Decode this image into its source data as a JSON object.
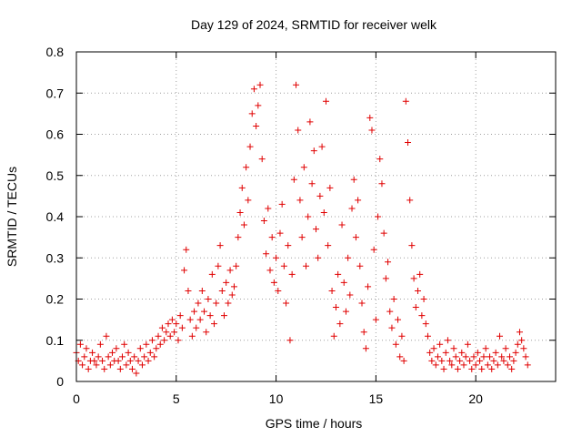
{
  "chart_data": {
    "type": "scatter",
    "title": "Day 129 of 2024, SRMTID for receiver welk",
    "xlabel": "GPS time / hours",
    "ylabel": "SRMTID / TECUs",
    "xlim": [
      0,
      24
    ],
    "ylim": [
      0,
      0.8
    ],
    "xticks": [
      0,
      5,
      10,
      15,
      20
    ],
    "xtick_labels": [
      "0",
      "5",
      "10",
      "15",
      "20"
    ],
    "yticks": [
      0,
      0.1,
      0.2,
      0.3,
      0.4,
      0.5,
      0.6,
      0.7,
      0.8
    ],
    "ytick_labels": [
      "0",
      "0.1",
      "0.2",
      "0.3",
      "0.4",
      "0.5",
      "0.6",
      "0.7",
      "0.8"
    ],
    "grid": true,
    "marker": "plus",
    "color": "#e00000",
    "series": [
      {
        "name": "SRMTID",
        "points": [
          [
            0.0,
            0.07
          ],
          [
            0.1,
            0.05
          ],
          [
            0.2,
            0.09
          ],
          [
            0.3,
            0.04
          ],
          [
            0.4,
            0.06
          ],
          [
            0.5,
            0.08
          ],
          [
            0.6,
            0.03
          ],
          [
            0.7,
            0.05
          ],
          [
            0.8,
            0.07
          ],
          [
            0.9,
            0.05
          ],
          [
            1.0,
            0.04
          ],
          [
            1.1,
            0.06
          ],
          [
            1.2,
            0.09
          ],
          [
            1.3,
            0.05
          ],
          [
            1.4,
            0.03
          ],
          [
            1.5,
            0.11
          ],
          [
            1.6,
            0.06
          ],
          [
            1.7,
            0.04
          ],
          [
            1.8,
            0.07
          ],
          [
            1.9,
            0.05
          ],
          [
            2.0,
            0.08
          ],
          [
            2.1,
            0.05
          ],
          [
            2.2,
            0.03
          ],
          [
            2.3,
            0.06
          ],
          [
            2.4,
            0.09
          ],
          [
            2.5,
            0.04
          ],
          [
            2.6,
            0.07
          ],
          [
            2.7,
            0.05
          ],
          [
            2.8,
            0.03
          ],
          [
            2.9,
            0.06
          ],
          [
            3.0,
            0.02
          ],
          [
            3.1,
            0.05
          ],
          [
            3.2,
            0.08
          ],
          [
            3.3,
            0.04
          ],
          [
            3.4,
            0.06
          ],
          [
            3.5,
            0.09
          ],
          [
            3.6,
            0.05
          ],
          [
            3.7,
            0.07
          ],
          [
            3.8,
            0.1
          ],
          [
            3.9,
            0.06
          ],
          [
            4.0,
            0.08
          ],
          [
            4.1,
            0.11
          ],
          [
            4.2,
            0.09
          ],
          [
            4.3,
            0.13
          ],
          [
            4.4,
            0.1
          ],
          [
            4.5,
            0.12
          ],
          [
            4.6,
            0.14
          ],
          [
            4.7,
            0.11
          ],
          [
            4.8,
            0.15
          ],
          [
            4.9,
            0.12
          ],
          [
            5.0,
            0.14
          ],
          [
            5.1,
            0.1
          ],
          [
            5.2,
            0.16
          ],
          [
            5.3,
            0.13
          ],
          [
            5.4,
            0.27
          ],
          [
            5.5,
            0.32
          ],
          [
            5.6,
            0.22
          ],
          [
            5.7,
            0.15
          ],
          [
            5.8,
            0.11
          ],
          [
            5.9,
            0.17
          ],
          [
            6.0,
            0.13
          ],
          [
            6.1,
            0.19
          ],
          [
            6.2,
            0.15
          ],
          [
            6.3,
            0.22
          ],
          [
            6.4,
            0.17
          ],
          [
            6.5,
            0.12
          ],
          [
            6.6,
            0.2
          ],
          [
            6.7,
            0.16
          ],
          [
            6.8,
            0.26
          ],
          [
            6.9,
            0.14
          ],
          [
            7.0,
            0.19
          ],
          [
            7.1,
            0.28
          ],
          [
            7.2,
            0.33
          ],
          [
            7.3,
            0.22
          ],
          [
            7.4,
            0.16
          ],
          [
            7.5,
            0.24
          ],
          [
            7.6,
            0.19
          ],
          [
            7.7,
            0.27
          ],
          [
            7.8,
            0.21
          ],
          [
            7.9,
            0.23
          ],
          [
            8.0,
            0.28
          ],
          [
            8.1,
            0.35
          ],
          [
            8.2,
            0.41
          ],
          [
            8.3,
            0.47
          ],
          [
            8.4,
            0.38
          ],
          [
            8.5,
            0.52
          ],
          [
            8.6,
            0.44
          ],
          [
            8.7,
            0.57
          ],
          [
            8.8,
            0.65
          ],
          [
            8.9,
            0.71
          ],
          [
            9.0,
            0.62
          ],
          [
            9.1,
            0.67
          ],
          [
            9.2,
            0.72
          ],
          [
            9.3,
            0.54
          ],
          [
            9.4,
            0.39
          ],
          [
            9.5,
            0.31
          ],
          [
            9.6,
            0.42
          ],
          [
            9.7,
            0.27
          ],
          [
            9.8,
            0.35
          ],
          [
            9.9,
            0.24
          ],
          [
            10.0,
            0.3
          ],
          [
            10.1,
            0.22
          ],
          [
            10.2,
            0.36
          ],
          [
            10.3,
            0.43
          ],
          [
            10.4,
            0.28
          ],
          [
            10.5,
            0.19
          ],
          [
            10.6,
            0.33
          ],
          [
            10.7,
            0.1
          ],
          [
            10.8,
            0.26
          ],
          [
            10.9,
            0.49
          ],
          [
            11.0,
            0.72
          ],
          [
            11.1,
            0.61
          ],
          [
            11.2,
            0.44
          ],
          [
            11.3,
            0.35
          ],
          [
            11.4,
            0.52
          ],
          [
            11.5,
            0.28
          ],
          [
            11.6,
            0.4
          ],
          [
            11.7,
            0.63
          ],
          [
            11.8,
            0.48
          ],
          [
            11.9,
            0.56
          ],
          [
            12.0,
            0.37
          ],
          [
            12.1,
            0.3
          ],
          [
            12.2,
            0.45
          ],
          [
            12.3,
            0.57
          ],
          [
            12.4,
            0.41
          ],
          [
            12.5,
            0.68
          ],
          [
            12.6,
            0.33
          ],
          [
            12.7,
            0.47
          ],
          [
            12.8,
            0.22
          ],
          [
            12.9,
            0.11
          ],
          [
            13.0,
            0.18
          ],
          [
            13.1,
            0.26
          ],
          [
            13.2,
            0.14
          ],
          [
            13.3,
            0.38
          ],
          [
            13.4,
            0.24
          ],
          [
            13.5,
            0.17
          ],
          [
            13.6,
            0.3
          ],
          [
            13.7,
            0.21
          ],
          [
            13.8,
            0.42
          ],
          [
            13.9,
            0.49
          ],
          [
            14.0,
            0.35
          ],
          [
            14.1,
            0.44
          ],
          [
            14.2,
            0.28
          ],
          [
            14.3,
            0.19
          ],
          [
            14.4,
            0.12
          ],
          [
            14.5,
            0.08
          ],
          [
            14.6,
            0.23
          ],
          [
            14.7,
            0.64
          ],
          [
            14.8,
            0.61
          ],
          [
            14.9,
            0.32
          ],
          [
            15.0,
            0.15
          ],
          [
            15.1,
            0.4
          ],
          [
            15.2,
            0.54
          ],
          [
            15.3,
            0.48
          ],
          [
            15.4,
            0.36
          ],
          [
            15.5,
            0.25
          ],
          [
            15.6,
            0.29
          ],
          [
            15.7,
            0.17
          ],
          [
            15.8,
            0.13
          ],
          [
            15.9,
            0.2
          ],
          [
            16.0,
            0.09
          ],
          [
            16.1,
            0.15
          ],
          [
            16.2,
            0.06
          ],
          [
            16.3,
            0.11
          ],
          [
            16.4,
            0.05
          ],
          [
            16.5,
            0.68
          ],
          [
            16.6,
            0.58
          ],
          [
            16.7,
            0.44
          ],
          [
            16.8,
            0.33
          ],
          [
            16.9,
            0.25
          ],
          [
            17.0,
            0.18
          ],
          [
            17.1,
            0.22
          ],
          [
            17.2,
            0.26
          ],
          [
            17.3,
            0.16
          ],
          [
            17.4,
            0.2
          ],
          [
            17.5,
            0.14
          ],
          [
            17.6,
            0.11
          ],
          [
            17.7,
            0.07
          ],
          [
            17.8,
            0.05
          ],
          [
            17.9,
            0.08
          ],
          [
            18.0,
            0.04
          ],
          [
            18.1,
            0.06
          ],
          [
            18.2,
            0.09
          ],
          [
            18.3,
            0.05
          ],
          [
            18.4,
            0.03
          ],
          [
            18.5,
            0.07
          ],
          [
            18.6,
            0.1
          ],
          [
            18.7,
            0.05
          ],
          [
            18.8,
            0.04
          ],
          [
            18.9,
            0.08
          ],
          [
            19.0,
            0.06
          ],
          [
            19.1,
            0.03
          ],
          [
            19.2,
            0.05
          ],
          [
            19.3,
            0.07
          ],
          [
            19.4,
            0.04
          ],
          [
            19.5,
            0.06
          ],
          [
            19.6,
            0.09
          ],
          [
            19.7,
            0.05
          ],
          [
            19.8,
            0.03
          ],
          [
            19.9,
            0.06
          ],
          [
            20.0,
            0.04
          ],
          [
            20.1,
            0.07
          ],
          [
            20.2,
            0.05
          ],
          [
            20.3,
            0.03
          ],
          [
            20.4,
            0.06
          ],
          [
            20.5,
            0.08
          ],
          [
            20.6,
            0.04
          ],
          [
            20.7,
            0.06
          ],
          [
            20.8,
            0.03
          ],
          [
            20.9,
            0.05
          ],
          [
            21.0,
            0.07
          ],
          [
            21.1,
            0.04
          ],
          [
            21.2,
            0.11
          ],
          [
            21.3,
            0.06
          ],
          [
            21.4,
            0.05
          ],
          [
            21.5,
            0.08
          ],
          [
            21.6,
            0.04
          ],
          [
            21.7,
            0.06
          ],
          [
            21.8,
            0.03
          ],
          [
            21.9,
            0.05
          ],
          [
            22.0,
            0.07
          ],
          [
            22.1,
            0.09
          ],
          [
            22.2,
            0.12
          ],
          [
            22.3,
            0.1
          ],
          [
            22.4,
            0.08
          ],
          [
            22.5,
            0.06
          ],
          [
            22.6,
            0.04
          ]
        ]
      }
    ]
  }
}
